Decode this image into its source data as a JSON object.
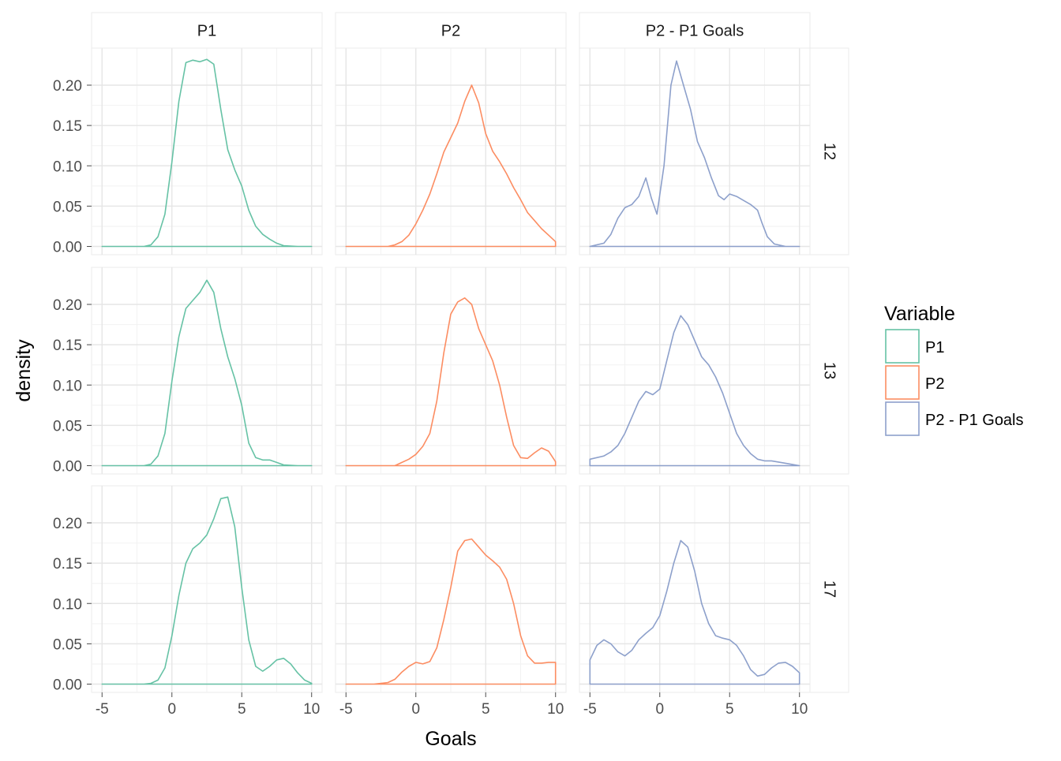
{
  "chart_data": {
    "type": "line",
    "chart_kind": "faceted density plot",
    "facet_columns": [
      "P1",
      "P2",
      "P2 - P1 Goals"
    ],
    "facet_rows": [
      "12",
      "13",
      "17"
    ],
    "xlabel": "Goals",
    "ylabel": "density",
    "xlim": [
      -5,
      10
    ],
    "ylim": [
      0,
      0.235
    ],
    "x_ticks": [
      -5,
      0,
      5,
      10
    ],
    "x_tick_labels": [
      "-5",
      "0",
      "5",
      "10"
    ],
    "y_ticks": [
      0,
      0.05,
      0.1,
      0.15,
      0.2
    ],
    "y_tick_labels": [
      "0.00",
      "0.05",
      "0.10",
      "0.15",
      "0.20"
    ],
    "grid": true,
    "legend": {
      "title": "Variable",
      "placement": "right",
      "entries": [
        {
          "label": "P1",
          "color": "#66c2a5"
        },
        {
          "label": "P2",
          "color": "#fc8d62"
        },
        {
          "label": "P2 - P1 Goals",
          "color": "#8da0cb"
        }
      ]
    },
    "panels": [
      {
        "row": "12",
        "col": "P1",
        "variable": "P1",
        "x": [
          -5,
          -2,
          -1.5,
          -1,
          -0.5,
          0,
          0.5,
          1,
          1.5,
          2,
          2.5,
          3,
          3.5,
          4,
          4.5,
          5,
          5.5,
          6,
          6.5,
          7,
          7.5,
          8,
          9,
          10
        ],
        "y": [
          0,
          0,
          0.002,
          0.012,
          0.04,
          0.105,
          0.18,
          0.228,
          0.231,
          0.229,
          0.232,
          0.226,
          0.17,
          0.12,
          0.095,
          0.075,
          0.045,
          0.025,
          0.015,
          0.009,
          0.004,
          0.001,
          0,
          0
        ]
      },
      {
        "row": "12",
        "col": "P2",
        "variable": "P2",
        "x": [
          -5,
          -2,
          -1.5,
          -1,
          -0.5,
          0,
          0.5,
          1,
          1.5,
          2,
          2.5,
          3,
          3.5,
          4,
          4.5,
          5,
          5.5,
          6,
          6.5,
          7,
          7.5,
          8,
          8.5,
          9,
          9.5,
          10
        ],
        "y": [
          0,
          0,
          0.002,
          0.006,
          0.014,
          0.028,
          0.045,
          0.065,
          0.09,
          0.117,
          0.135,
          0.153,
          0.18,
          0.2,
          0.178,
          0.14,
          0.118,
          0.105,
          0.09,
          0.073,
          0.058,
          0.042,
          0.032,
          0.022,
          0.014,
          0.006
        ]
      },
      {
        "row": "12",
        "col": "P2 - P1 Goals",
        "variable": "P2 - P1 Goals",
        "x": [
          -5,
          -4,
          -3.5,
          -3,
          -2.5,
          -2,
          -1.5,
          -1,
          -0.6,
          -0.2,
          0.3,
          0.8,
          1.2,
          1.7,
          2.2,
          2.7,
          3.2,
          3.7,
          4.2,
          4.6,
          5,
          5.5,
          6,
          6.5,
          7,
          7.3,
          7.7,
          8.2,
          9,
          10
        ],
        "y": [
          0,
          0.004,
          0.015,
          0.035,
          0.048,
          0.052,
          0.062,
          0.085,
          0.06,
          0.04,
          0.1,
          0.2,
          0.23,
          0.2,
          0.17,
          0.13,
          0.11,
          0.085,
          0.063,
          0.058,
          0.065,
          0.062,
          0.057,
          0.052,
          0.045,
          0.03,
          0.012,
          0.003,
          0,
          0
        ]
      },
      {
        "row": "13",
        "col": "P1",
        "variable": "P1",
        "x": [
          -5,
          -2,
          -1.5,
          -1,
          -0.5,
          0,
          0.5,
          1,
          1.5,
          2,
          2.5,
          3,
          3.5,
          4,
          4.5,
          5,
          5.5,
          6,
          6.5,
          7,
          7.5,
          8,
          9,
          10
        ],
        "y": [
          0,
          0,
          0.002,
          0.012,
          0.04,
          0.105,
          0.16,
          0.195,
          0.205,
          0.215,
          0.23,
          0.215,
          0.17,
          0.135,
          0.108,
          0.075,
          0.028,
          0.01,
          0.007,
          0.007,
          0.004,
          0.001,
          0,
          0
        ]
      },
      {
        "row": "13",
        "col": "P2",
        "variable": "P2",
        "x": [
          -5,
          -1.5,
          -1,
          -0.5,
          0,
          0.5,
          1,
          1.5,
          2,
          2.5,
          3,
          3.5,
          4,
          4.5,
          5,
          5.5,
          6,
          6.5,
          7,
          7.5,
          8,
          8.5,
          9,
          9.5,
          10
        ],
        "y": [
          0,
          0,
          0.004,
          0.008,
          0.014,
          0.024,
          0.04,
          0.08,
          0.14,
          0.188,
          0.203,
          0.208,
          0.2,
          0.17,
          0.15,
          0.13,
          0.1,
          0.06,
          0.025,
          0.01,
          0.009,
          0.016,
          0.022,
          0.018,
          0.005
        ]
      },
      {
        "row": "13",
        "col": "P2 - P1 Goals",
        "variable": "P2 - P1 Goals",
        "x": [
          -5,
          -4,
          -3.5,
          -3,
          -2.5,
          -2,
          -1.5,
          -1,
          -0.5,
          0,
          0.5,
          1,
          1.5,
          2,
          2.5,
          3,
          3.5,
          4,
          4.5,
          5,
          5.5,
          6,
          6.5,
          7,
          7.5,
          8,
          9,
          10
        ],
        "y": [
          0.008,
          0.012,
          0.017,
          0.025,
          0.04,
          0.06,
          0.08,
          0.092,
          0.088,
          0.095,
          0.13,
          0.165,
          0.186,
          0.175,
          0.155,
          0.135,
          0.125,
          0.11,
          0.09,
          0.065,
          0.04,
          0.025,
          0.015,
          0.008,
          0.006,
          0.006,
          0.003,
          0
        ]
      },
      {
        "row": "17",
        "col": "P1",
        "variable": "P1",
        "x": [
          -5,
          -2,
          -1.5,
          -1,
          -0.5,
          0,
          0.5,
          1,
          1.5,
          2,
          2.5,
          3,
          3.5,
          4,
          4.5,
          5,
          5.5,
          6,
          6.5,
          7,
          7.5,
          8,
          8.5,
          9,
          9.5,
          10
        ],
        "y": [
          0,
          0,
          0.001,
          0.005,
          0.02,
          0.06,
          0.11,
          0.15,
          0.168,
          0.175,
          0.185,
          0.205,
          0.23,
          0.232,
          0.195,
          0.12,
          0.055,
          0.022,
          0.016,
          0.022,
          0.03,
          0.032,
          0.025,
          0.014,
          0.005,
          0.001
        ]
      },
      {
        "row": "17",
        "col": "P2",
        "variable": "P2",
        "x": [
          -5,
          -3,
          -2,
          -1.5,
          -1,
          -0.5,
          0,
          0.5,
          1,
          1.5,
          2,
          2.5,
          3,
          3.5,
          4,
          4.5,
          5,
          5.5,
          6,
          6.5,
          7,
          7.5,
          8,
          8.5,
          9,
          9.5,
          10
        ],
        "y": [
          0,
          0,
          0.002,
          0.006,
          0.015,
          0.022,
          0.027,
          0.025,
          0.028,
          0.045,
          0.08,
          0.12,
          0.165,
          0.178,
          0.18,
          0.17,
          0.16,
          0.153,
          0.145,
          0.13,
          0.1,
          0.06,
          0.035,
          0.026,
          0.026,
          0.027,
          0.027
        ]
      },
      {
        "row": "17",
        "col": "P2 - P1 Goals",
        "variable": "P2 - P1 Goals",
        "x": [
          -5,
          -4.5,
          -4,
          -3.5,
          -3,
          -2.5,
          -2,
          -1.5,
          -1,
          -0.5,
          0,
          0.5,
          1,
          1.5,
          2,
          2.5,
          3,
          3.5,
          4,
          4.5,
          5,
          5.5,
          6,
          6.5,
          7,
          7.5,
          8,
          8.5,
          9,
          9.5,
          10
        ],
        "y": [
          0.03,
          0.048,
          0.055,
          0.05,
          0.04,
          0.035,
          0.042,
          0.055,
          0.063,
          0.07,
          0.085,
          0.115,
          0.15,
          0.178,
          0.17,
          0.14,
          0.1,
          0.075,
          0.06,
          0.057,
          0.055,
          0.048,
          0.035,
          0.018,
          0.01,
          0.012,
          0.02,
          0.026,
          0.027,
          0.022,
          0.014
        ]
      }
    ]
  }
}
